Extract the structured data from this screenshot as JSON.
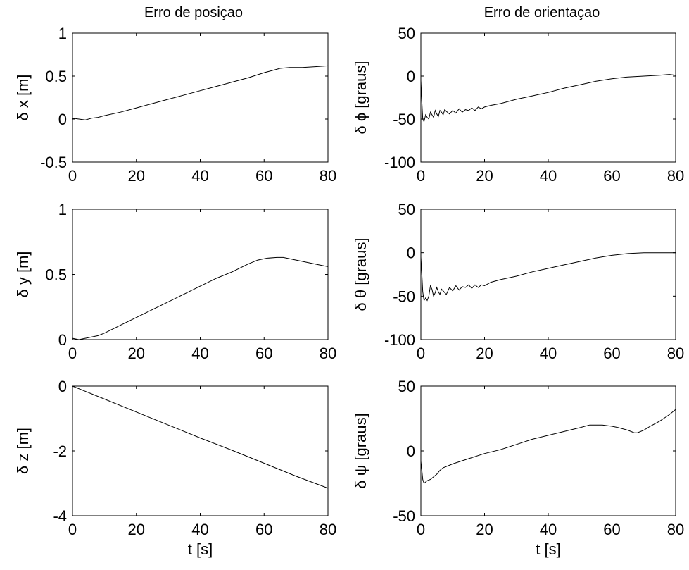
{
  "figure": {
    "column_titles": [
      "Erro de posiçao",
      "Erro de orientaçao"
    ]
  },
  "chart_data": [
    {
      "type": "line",
      "ylabel": "δ x [m]",
      "xlabel": "",
      "xlim": [
        0,
        80
      ],
      "ylim": [
        -0.5,
        1
      ],
      "xticks": [
        0,
        20,
        40,
        60,
        80
      ],
      "yticks": [
        -0.5,
        0,
        0.5,
        1
      ],
      "xtick_labels": [
        "0",
        "20",
        "40",
        "60",
        "80"
      ],
      "ytick_labels": [
        "-0.5",
        "0",
        "0.5",
        "1"
      ],
      "series": [
        {
          "x": [
            0,
            2,
            4,
            6,
            8,
            10,
            15,
            20,
            25,
            30,
            35,
            40,
            45,
            50,
            55,
            60,
            63,
            65,
            68,
            72,
            76,
            80
          ],
          "values": [
            0.01,
            0.0,
            -0.01,
            0.01,
            0.02,
            0.04,
            0.08,
            0.13,
            0.18,
            0.23,
            0.28,
            0.33,
            0.38,
            0.43,
            0.48,
            0.54,
            0.57,
            0.59,
            0.6,
            0.6,
            0.61,
            0.62
          ]
        }
      ]
    },
    {
      "type": "line",
      "ylabel": "δ y [m]",
      "xlabel": "",
      "xlim": [
        0,
        80
      ],
      "ylim": [
        0,
        1
      ],
      "xticks": [
        0,
        20,
        40,
        60,
        80
      ],
      "yticks": [
        0,
        0.5,
        1
      ],
      "xtick_labels": [
        "0",
        "20",
        "40",
        "60",
        "80"
      ],
      "ytick_labels": [
        "0",
        "0.5",
        "1"
      ],
      "series": [
        {
          "x": [
            0,
            2,
            4,
            6,
            8,
            10,
            15,
            20,
            25,
            30,
            35,
            40,
            45,
            50,
            55,
            58,
            61,
            64,
            66,
            68,
            70,
            74,
            78,
            80
          ],
          "values": [
            0.01,
            0.0,
            0.01,
            0.02,
            0.03,
            0.05,
            0.11,
            0.17,
            0.23,
            0.29,
            0.35,
            0.41,
            0.47,
            0.52,
            0.58,
            0.61,
            0.625,
            0.63,
            0.63,
            0.62,
            0.61,
            0.59,
            0.57,
            0.56
          ]
        }
      ]
    },
    {
      "type": "line",
      "ylabel": "δ z [m]",
      "xlabel": "t [s]",
      "xlim": [
        0,
        80
      ],
      "ylim": [
        -4,
        0
      ],
      "xticks": [
        0,
        20,
        40,
        60,
        80
      ],
      "yticks": [
        -4,
        -2,
        0
      ],
      "xtick_labels": [
        "0",
        "20",
        "40",
        "60",
        "80"
      ],
      "ytick_labels": [
        "-4",
        "-2",
        "0"
      ],
      "series": [
        {
          "x": [
            0,
            5,
            10,
            20,
            30,
            40,
            50,
            60,
            70,
            80
          ],
          "values": [
            0.0,
            -0.2,
            -0.4,
            -0.8,
            -1.2,
            -1.6,
            -1.98,
            -2.38,
            -2.78,
            -3.15
          ]
        }
      ]
    },
    {
      "type": "line",
      "ylabel": "δ ϕ [graus]",
      "xlabel": "",
      "xlim": [
        0,
        80
      ],
      "ylim": [
        -100,
        50
      ],
      "xticks": [
        0,
        20,
        40,
        60,
        80
      ],
      "yticks": [
        -100,
        -50,
        0,
        50
      ],
      "xtick_labels": [
        "0",
        "20",
        "40",
        "60",
        "80"
      ],
      "ytick_labels": [
        "-100",
        "-50",
        "0",
        "50"
      ],
      "series": [
        {
          "x": [
            0,
            0.3,
            0.6,
            1.0,
            1.5,
            2.0,
            2.5,
            3.0,
            3.5,
            4.0,
            4.5,
            5.0,
            5.5,
            6.0,
            6.5,
            7.0,
            7.5,
            8.0,
            9,
            10,
            11,
            12,
            13,
            14,
            15,
            16,
            17,
            18,
            19,
            20,
            22,
            25,
            30,
            35,
            40,
            45,
            50,
            55,
            60,
            65,
            70,
            75,
            78,
            80
          ],
          "values": [
            -5,
            -30,
            -50,
            -53,
            -45,
            -48,
            -50,
            -42,
            -45,
            -48,
            -40,
            -44,
            -47,
            -40,
            -42,
            -45,
            -39,
            -41,
            -44,
            -40,
            -43,
            -38,
            -42,
            -39,
            -40,
            -37,
            -40,
            -36,
            -38,
            -36,
            -34,
            -32,
            -27,
            -23,
            -19,
            -14,
            -10,
            -6,
            -3,
            -1,
            0,
            1,
            2,
            1
          ]
        }
      ]
    },
    {
      "type": "line",
      "ylabel": "δ θ [graus]",
      "xlabel": "",
      "xlim": [
        0,
        80
      ],
      "ylim": [
        -100,
        50
      ],
      "xticks": [
        0,
        20,
        40,
        60,
        80
      ],
      "yticks": [
        -100,
        -50,
        0,
        50
      ],
      "xtick_labels": [
        "0",
        "20",
        "40",
        "60",
        "80"
      ],
      "ytick_labels": [
        "-100",
        "-50",
        "0",
        "50"
      ],
      "series": [
        {
          "x": [
            0,
            0.3,
            0.6,
            1.0,
            1.5,
            2.0,
            2.5,
            3.0,
            3.5,
            4.0,
            4.5,
            5.0,
            5.5,
            6.0,
            6.5,
            7.0,
            8,
            9,
            10,
            11,
            12,
            13,
            14,
            15,
            16,
            17,
            18,
            19,
            20,
            22,
            25,
            30,
            35,
            40,
            45,
            50,
            55,
            60,
            65,
            70,
            75,
            78,
            80
          ],
          "values": [
            -5,
            -25,
            -45,
            -55,
            -52,
            -55,
            -50,
            -38,
            -42,
            -50,
            -46,
            -40,
            -45,
            -48,
            -42,
            -44,
            -48,
            -40,
            -44,
            -38,
            -43,
            -39,
            -40,
            -37,
            -41,
            -37,
            -40,
            -37,
            -38,
            -34,
            -31,
            -27,
            -22,
            -18,
            -14,
            -10,
            -6,
            -3,
            -1,
            0,
            0,
            0,
            0
          ]
        }
      ]
    },
    {
      "type": "line",
      "ylabel": "δ ψ [graus]",
      "xlabel": "t [s]",
      "xlim": [
        0,
        80
      ],
      "ylim": [
        -50,
        50
      ],
      "xticks": [
        0,
        20,
        40,
        60,
        80
      ],
      "yticks": [
        -50,
        0,
        50
      ],
      "xtick_labels": [
        "0",
        "20",
        "40",
        "60",
        "80"
      ],
      "ytick_labels": [
        "-50",
        "0",
        "50"
      ],
      "series": [
        {
          "x": [
            0,
            0.3,
            0.6,
            1.0,
            2,
            3,
            4,
            5,
            6,
            7,
            8,
            10,
            15,
            20,
            25,
            30,
            35,
            40,
            45,
            50,
            53,
            55,
            57,
            60,
            62,
            65,
            67,
            68,
            70,
            72,
            75,
            78,
            80
          ],
          "values": [
            -8,
            -15,
            -22,
            -25,
            -23,
            -22,
            -20,
            -18,
            -15,
            -13,
            -12,
            -10,
            -6,
            -2,
            1,
            5,
            9,
            12,
            15,
            18,
            20,
            20,
            20,
            19,
            18,
            16,
            14,
            14,
            16,
            19,
            23,
            28,
            32
          ]
        }
      ]
    }
  ]
}
